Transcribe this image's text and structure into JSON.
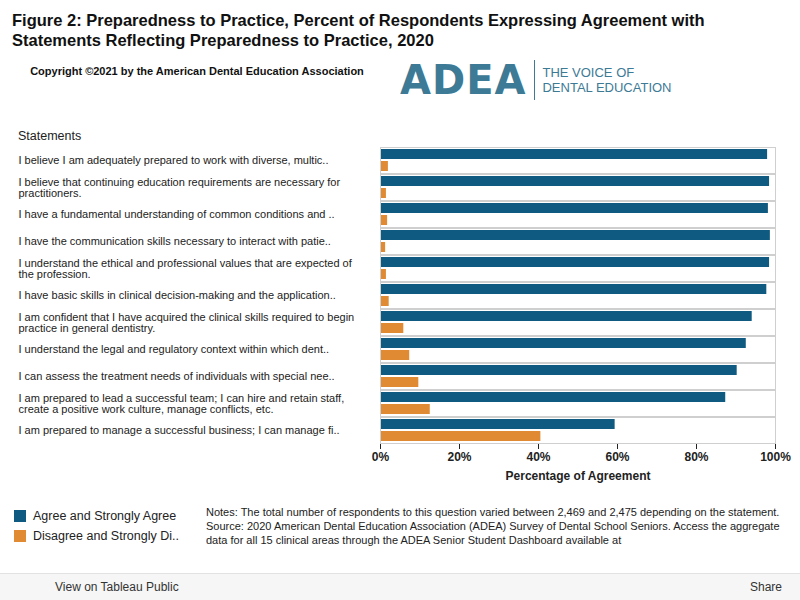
{
  "chart_data": {
    "type": "bar",
    "orientation": "horizontal",
    "title": "Figure 2: Preparedness to Practice, Percent of Respondents Expressing Agreement with Statements Reflecting Preparedness to Practice, 2020",
    "copyright": "Copyright ©2021 by the American Dental Education Association",
    "logo": {
      "name": "ADEA",
      "tagline": [
        "THE VOICE OF",
        "DENTAL EDUCATION"
      ]
    },
    "y_label": "Statements",
    "x_label": "Percentage of Agreement",
    "categories": [
      "I believe I am adequately prepared to work with diverse, multic..",
      "I believe that continuing education requirements are necessary for practitioners.",
      "I have a fundamental understanding of common conditions and ..",
      "I have the communication skills necessary to interact with patie..",
      "I understand the ethical and professional values that are expected of the profession.",
      "I have basic skills in clinical decision-making and the application..",
      "I am confident that I have acquired the clinical skills required to begin practice in general dentistry.",
      "I understand the legal and regulatory context within which dent..",
      "I can assess the treatment needs of individuals with special nee..",
      "I am prepared to lead a successful team; I can hire and retain staff, create a positive work culture, manage conflicts, etc.",
      "I am prepared to manage a successful business; I can manage fi.."
    ],
    "series": [
      {
        "name": "Agree and Strongly Agree",
        "color": "#0f5a80",
        "values": [
          98.0,
          98.5,
          98.2,
          98.7,
          98.5,
          97.8,
          94.1,
          92.6,
          90.3,
          87.4,
          59.4
        ]
      },
      {
        "name": "Disagree and Strongly Di..",
        "color": "#e08b34",
        "values": [
          2.0,
          1.5,
          1.8,
          1.3,
          1.5,
          2.2,
          5.9,
          7.4,
          9.7,
          12.6,
          40.6
        ]
      }
    ],
    "xlim": [
      0,
      100
    ],
    "xticks": [
      {
        "value": 0,
        "label": "0%"
      },
      {
        "value": 20,
        "label": "20%"
      },
      {
        "value": 40,
        "label": "40%"
      },
      {
        "value": 60,
        "label": "60%"
      },
      {
        "value": 80,
        "label": "80%"
      },
      {
        "value": 100,
        "label": "100%"
      }
    ],
    "grid": false,
    "legend": "bottom-left",
    "notes": [
      "Notes: The total number of respondents to this question varied between 2,469 and 2,475 depending on the statement.",
      "Source: 2020 American Dental Education Association (ADEA) Survey of Dental School Seniors. Access the aggregate data for all 15 clinical areas through the ADEA Senior Student Dashboard available at"
    ],
    "footer": {
      "left": "View on Tableau Public",
      "right": "Share"
    }
  }
}
